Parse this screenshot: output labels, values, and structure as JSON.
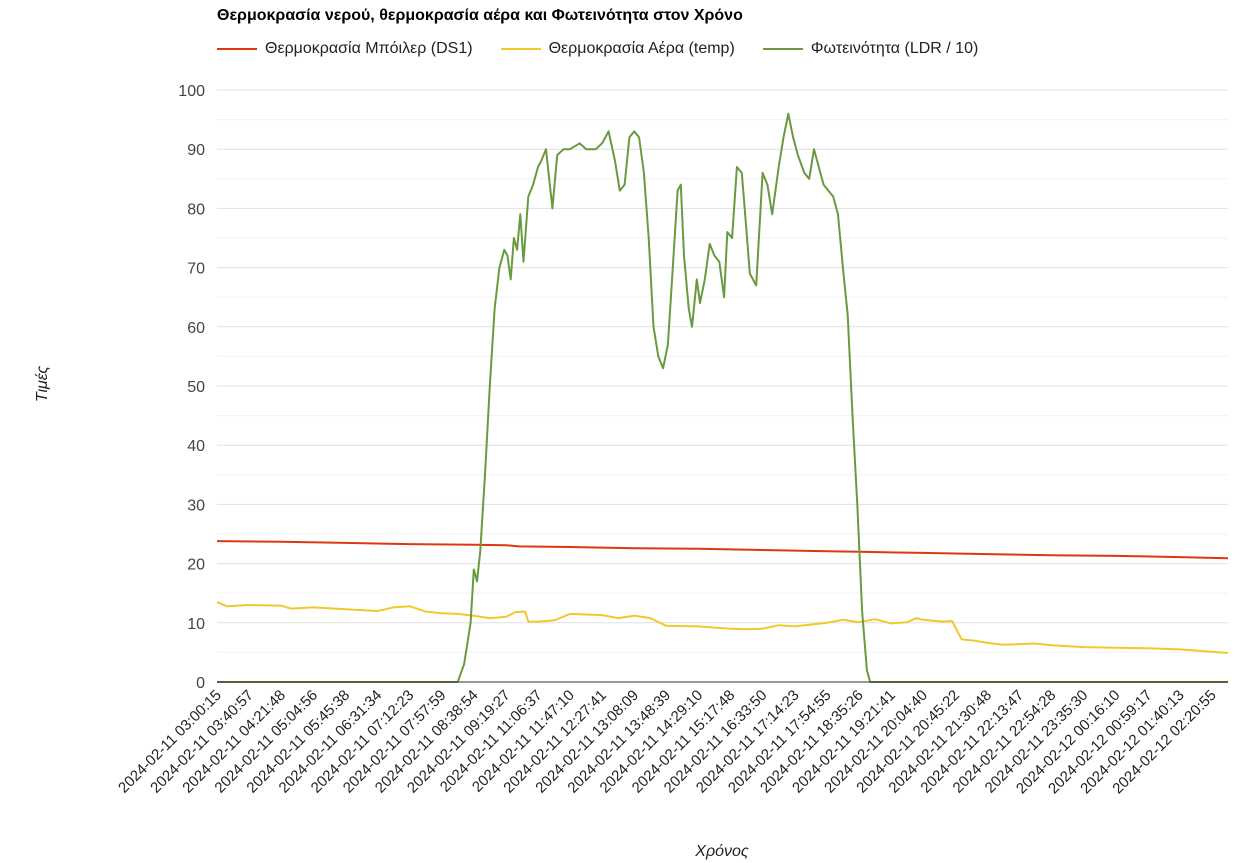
{
  "chart_data": {
    "type": "line",
    "title": "Θερμοκρασία νερού, θερμοκρασία αέρα και Φωτεινότητα στον Χρόνο",
    "xlabel": "Χρόνος",
    "ylabel": "Τιμές",
    "ylim": [
      0,
      100
    ],
    "yticks": [
      0,
      10,
      20,
      30,
      40,
      50,
      60,
      70,
      80,
      90,
      100
    ],
    "grid": true,
    "legend_position": "top-left",
    "x_tick_labels": [
      "2024-02-11 03:00:15",
      "2024-02-11 03:40:57",
      "2024-02-11 04:21:48",
      "2024-02-11 05:04:56",
      "2024-02-11 05:45:38",
      "2024-02-11 06:31:34",
      "2024-02-11 07:12:23",
      "2024-02-11 07:57:59",
      "2024-02-11 08:38:54",
      "2024-02-11 09:19:27",
      "2024-02-11 11:06:37",
      "2024-02-11 11:47:10",
      "2024-02-11 12:27:41",
      "2024-02-11 13:08:09",
      "2024-02-11 13:48:39",
      "2024-02-11 14:29:10",
      "2024-02-11 15:17:48",
      "2024-02-11 16:33:50",
      "2024-02-11 17:14:23",
      "2024-02-11 17:54:55",
      "2024-02-11 18:35:26",
      "2024-02-11 19:21:41",
      "2024-02-11 20:04:40",
      "2024-02-11 20:45:22",
      "2024-02-11 21:30:48",
      "2024-02-11 22:13:47",
      "2024-02-11 22:54:28",
      "2024-02-11 23:35:30",
      "2024-02-12 00:16:10",
      "2024-02-12 00:59:17",
      "2024-02-12 01:40:13",
      "2024-02-12 02:20:55"
    ],
    "x_domain": [
      0,
      31.5
    ],
    "series": [
      {
        "name": "Θερμοκρασία Μπόιλερ (DS1)",
        "color": "#dc3912",
        "points": [
          [
            0,
            23.8
          ],
          [
            2,
            23.7
          ],
          [
            4,
            23.5
          ],
          [
            6,
            23.3
          ],
          [
            8,
            23.2
          ],
          [
            9,
            23.1
          ],
          [
            9.4,
            22.9
          ],
          [
            11,
            22.8
          ],
          [
            13,
            22.6
          ],
          [
            15,
            22.5
          ],
          [
            17,
            22.3
          ],
          [
            19,
            22.1
          ],
          [
            20,
            22.0
          ],
          [
            22,
            21.8
          ],
          [
            24,
            21.6
          ],
          [
            26,
            21.4
          ],
          [
            28,
            21.3
          ],
          [
            30,
            21.1
          ],
          [
            31.5,
            20.9
          ]
        ]
      },
      {
        "name": "Θερμοκρασία Αέρα (temp)",
        "color": "#f0c92c",
        "points": [
          [
            0,
            13.5
          ],
          [
            0.3,
            12.8
          ],
          [
            1,
            13.0
          ],
          [
            2,
            12.9
          ],
          [
            2.3,
            12.4
          ],
          [
            3,
            12.6
          ],
          [
            4,
            12.3
          ],
          [
            5,
            12.0
          ],
          [
            5.5,
            12.6
          ],
          [
            6,
            12.8
          ],
          [
            6.5,
            11.9
          ],
          [
            7,
            11.6
          ],
          [
            7.5,
            11.5
          ],
          [
            8,
            11.2
          ],
          [
            8.5,
            10.8
          ],
          [
            9,
            11.0
          ],
          [
            9.3,
            11.8
          ],
          [
            9.6,
            11.9
          ],
          [
            9.7,
            10.2
          ],
          [
            10,
            10.2
          ],
          [
            10.5,
            10.4
          ],
          [
            11,
            11.5
          ],
          [
            12,
            11.3
          ],
          [
            12.5,
            10.8
          ],
          [
            13,
            11.2
          ],
          [
            13.5,
            10.8
          ],
          [
            14,
            9.5
          ],
          [
            15,
            9.4
          ],
          [
            16,
            9.0
          ],
          [
            16.5,
            8.9
          ],
          [
            17,
            9.0
          ],
          [
            17.5,
            9.6
          ],
          [
            18,
            9.4
          ],
          [
            18.5,
            9.7
          ],
          [
            19,
            10.0
          ],
          [
            19.5,
            10.5
          ],
          [
            20,
            10.1
          ],
          [
            20.5,
            10.6
          ],
          [
            21,
            9.9
          ],
          [
            21.5,
            10.1
          ],
          [
            21.8,
            10.8
          ],
          [
            22,
            10.5
          ],
          [
            22.6,
            10.2
          ],
          [
            22.9,
            10.3
          ],
          [
            23.2,
            7.2
          ],
          [
            23.6,
            7.0
          ],
          [
            24,
            6.6
          ],
          [
            24.5,
            6.3
          ],
          [
            25,
            6.4
          ],
          [
            25.5,
            6.5
          ],
          [
            26,
            6.2
          ],
          [
            27,
            5.9
          ],
          [
            28,
            5.8
          ],
          [
            29,
            5.7
          ],
          [
            30,
            5.5
          ],
          [
            31,
            5.1
          ],
          [
            31.5,
            4.9
          ]
        ]
      },
      {
        "name": "Φωτεινότητα (LDR / 10)",
        "color": "#6a9a3f",
        "points": [
          [
            0,
            0
          ],
          [
            7.5,
            0
          ],
          [
            7.7,
            3
          ],
          [
            7.9,
            10
          ],
          [
            8.0,
            19
          ],
          [
            8.1,
            17
          ],
          [
            8.2,
            22
          ],
          [
            8.35,
            35
          ],
          [
            8.5,
            50
          ],
          [
            8.65,
            63
          ],
          [
            8.8,
            70
          ],
          [
            8.95,
            73
          ],
          [
            9.05,
            72
          ],
          [
            9.15,
            68
          ],
          [
            9.25,
            75
          ],
          [
            9.35,
            73
          ],
          [
            9.45,
            79
          ],
          [
            9.55,
            71
          ],
          [
            9.7,
            82
          ],
          [
            9.85,
            84
          ],
          [
            10.0,
            87
          ],
          [
            10.1,
            88
          ],
          [
            10.25,
            90
          ],
          [
            10.35,
            85
          ],
          [
            10.45,
            80
          ],
          [
            10.6,
            89
          ],
          [
            10.8,
            90
          ],
          [
            11.0,
            90
          ],
          [
            11.3,
            91
          ],
          [
            11.5,
            90
          ],
          [
            11.8,
            90
          ],
          [
            12.0,
            91
          ],
          [
            12.2,
            93
          ],
          [
            12.4,
            88
          ],
          [
            12.55,
            83
          ],
          [
            12.7,
            84
          ],
          [
            12.85,
            92
          ],
          [
            13.0,
            93
          ],
          [
            13.15,
            92
          ],
          [
            13.3,
            86
          ],
          [
            13.45,
            75
          ],
          [
            13.6,
            60
          ],
          [
            13.75,
            55
          ],
          [
            13.9,
            53
          ],
          [
            14.05,
            57
          ],
          [
            14.2,
            70
          ],
          [
            14.35,
            83
          ],
          [
            14.45,
            84
          ],
          [
            14.55,
            72
          ],
          [
            14.7,
            63
          ],
          [
            14.8,
            60
          ],
          [
            14.95,
            68
          ],
          [
            15.05,
            64
          ],
          [
            15.2,
            68
          ],
          [
            15.35,
            74
          ],
          [
            15.5,
            72
          ],
          [
            15.65,
            71
          ],
          [
            15.8,
            65
          ],
          [
            15.9,
            76
          ],
          [
            16.05,
            75
          ],
          [
            16.2,
            87
          ],
          [
            16.35,
            86
          ],
          [
            16.5,
            76
          ],
          [
            16.6,
            69
          ],
          [
            16.8,
            67
          ],
          [
            17.0,
            86
          ],
          [
            17.15,
            84
          ],
          [
            17.3,
            79
          ],
          [
            17.5,
            87
          ],
          [
            17.65,
            92
          ],
          [
            17.8,
            96
          ],
          [
            17.95,
            92
          ],
          [
            18.1,
            89
          ],
          [
            18.3,
            86
          ],
          [
            18.45,
            85
          ],
          [
            18.6,
            90
          ],
          [
            18.75,
            87
          ],
          [
            18.9,
            84
          ],
          [
            19.05,
            83
          ],
          [
            19.2,
            82
          ],
          [
            19.35,
            79
          ],
          [
            19.5,
            70
          ],
          [
            19.65,
            62
          ],
          [
            19.8,
            45
          ],
          [
            19.95,
            30
          ],
          [
            20.1,
            12
          ],
          [
            20.25,
            2
          ],
          [
            20.35,
            0
          ],
          [
            31.5,
            0
          ]
        ]
      }
    ]
  }
}
